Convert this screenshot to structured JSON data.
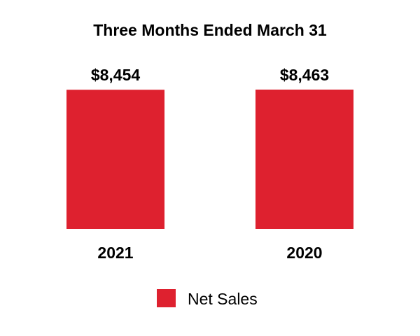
{
  "chart_data": {
    "type": "bar",
    "title": "Three Months Ended March 31",
    "categories": [
      "2021",
      "2020"
    ],
    "series": [
      {
        "name": "Net Sales",
        "values": [
          8454,
          8463
        ],
        "color": "#de212f"
      }
    ],
    "value_labels": [
      "$8,454",
      "$8,463"
    ],
    "ylim": [
      0,
      8463
    ],
    "grid": false,
    "axes_visible": false,
    "legend": "bottom"
  }
}
